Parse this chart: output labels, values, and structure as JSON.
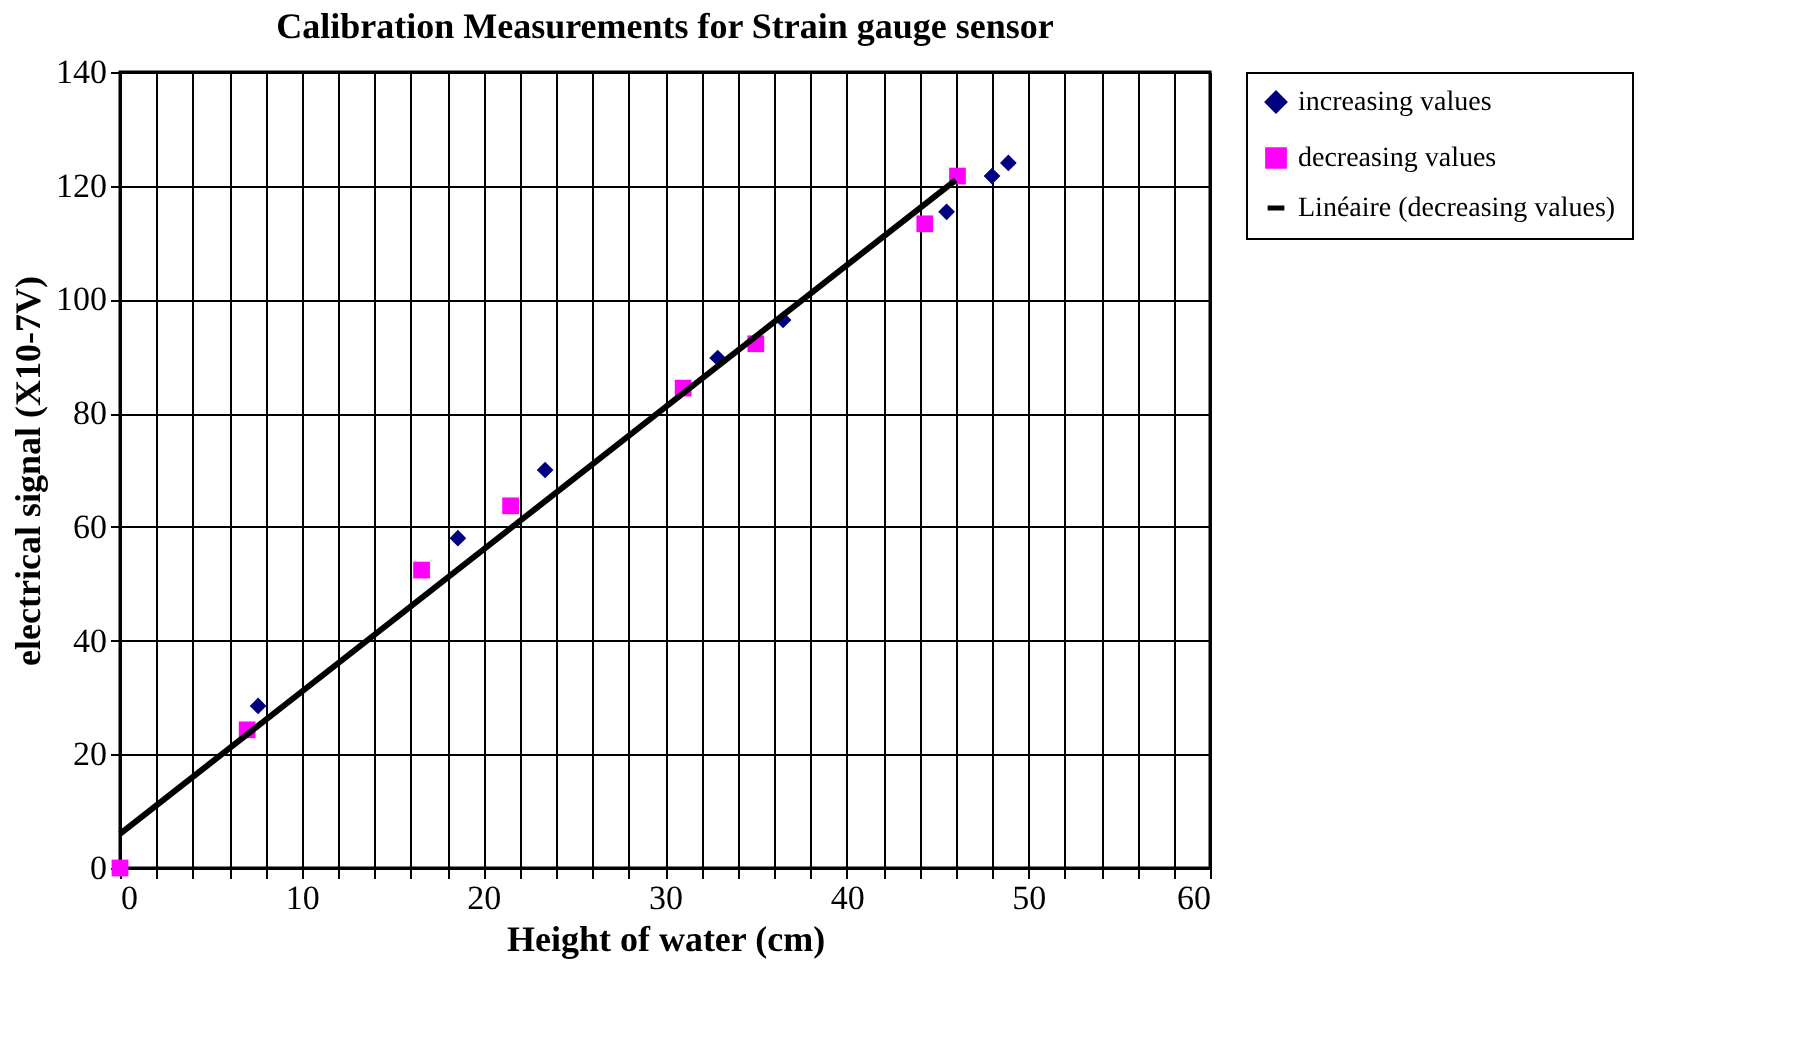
{
  "chart_data": {
    "type": "scatter",
    "title": "Calibration Measurements for Strain gauge sensor",
    "xlabel": "Height of water (cm)",
    "ylabel": "electrical signal (X10-7V)",
    "xlim": [
      0,
      60
    ],
    "ylim": [
      0,
      140
    ],
    "xticks": [
      0,
      {
        "value": 2,
        "label": null
      },
      {
        "value": 4,
        "label": null
      },
      {
        "value": 6,
        "label": null
      },
      {
        "value": 8,
        "label": null
      },
      10,
      {
        "value": 12,
        "label": null
      },
      {
        "value": 14,
        "label": null
      },
      {
        "value": 16,
        "label": null
      },
      {
        "value": 18,
        "label": null
      },
      20,
      {
        "value": 22,
        "label": null
      },
      {
        "value": 24,
        "label": null
      },
      {
        "value": 26,
        "label": null
      },
      {
        "value": 28,
        "label": null
      },
      30,
      {
        "value": 32,
        "label": null
      },
      {
        "value": 34,
        "label": null
      },
      {
        "value": 36,
        "label": null
      },
      {
        "value": 38,
        "label": null
      },
      40,
      {
        "value": 42,
        "label": null
      },
      {
        "value": 44,
        "label": null
      },
      {
        "value": 46,
        "label": null
      },
      {
        "value": 48,
        "label": null
      },
      50,
      {
        "value": 52,
        "label": null
      },
      {
        "value": 54,
        "label": null
      },
      {
        "value": 56,
        "label": null
      },
      {
        "value": 58,
        "label": null
      },
      60
    ],
    "yticks": [
      0,
      20,
      40,
      60,
      80,
      100,
      120,
      140
    ],
    "grid": true,
    "legend": "right",
    "series": [
      {
        "name": "increasing values",
        "type": "scatter",
        "marker": "diamond",
        "color": "#000080",
        "x": [
          7.6,
          18.6,
          23.4,
          32.9,
          36.5,
          45.5,
          48,
          48.9
        ],
        "values": [
          28.5,
          58,
          70,
          89.7,
          96.4,
          115.4,
          121.7,
          124
        ]
      },
      {
        "name": "decreasing values",
        "type": "scatter",
        "marker": "square",
        "color": "#ff00ff",
        "x": [
          0,
          7,
          16.6,
          21.5,
          31,
          35,
          44.3,
          46.1
        ],
        "values": [
          0,
          24.3,
          52.4,
          63.7,
          84.4,
          92.2,
          113.3,
          121.7
        ]
      },
      {
        "name": "Linéaire (decreasing values)",
        "type": "line",
        "line_style": "solid",
        "color": "#000000",
        "x": [
          0,
          46
        ],
        "values": [
          6,
          121
        ]
      }
    ]
  }
}
